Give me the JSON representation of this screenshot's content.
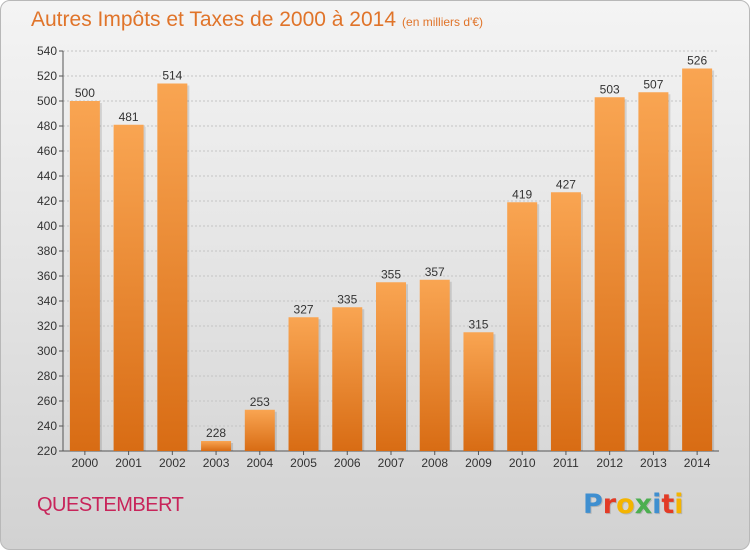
{
  "chart_data": {
    "type": "bar",
    "title": "Autres Impôts et Taxes de 2000 à 2014",
    "subtitle": "(en milliers d'€)",
    "categories": [
      "2000",
      "2001",
      "2002",
      "2003",
      "2004",
      "2005",
      "2006",
      "2007",
      "2008",
      "2009",
      "2010",
      "2011",
      "2012",
      "2013",
      "2014"
    ],
    "values": [
      500,
      481,
      514,
      228,
      253,
      327,
      335,
      355,
      357,
      315,
      419,
      427,
      503,
      507,
      526
    ],
    "ylim": [
      220,
      540
    ],
    "yticks": [
      220,
      240,
      260,
      280,
      300,
      320,
      340,
      360,
      380,
      400,
      420,
      440,
      460,
      480,
      500,
      520,
      540
    ],
    "grid": true,
    "xlabel": "",
    "ylabel": ""
  },
  "footer": {
    "commune": "QUESTEMBERT",
    "logo_letters": [
      {
        "char": "P",
        "color": "#3f8fd0"
      },
      {
        "char": "r",
        "color": "#e23b26"
      },
      {
        "char": "o",
        "color": "#f4b400"
      },
      {
        "char": "x",
        "color": "#4caf50"
      },
      {
        "char": "i",
        "color": "#3f8fd0"
      },
      {
        "char": "t",
        "color": "#e23b26"
      },
      {
        "char": "i",
        "color": "#f4b400"
      }
    ]
  },
  "colors": {
    "bar_light": "#f9a552",
    "bar_dark": "#d86c14",
    "title": "#e0742a",
    "commune": "#c8245a"
  }
}
